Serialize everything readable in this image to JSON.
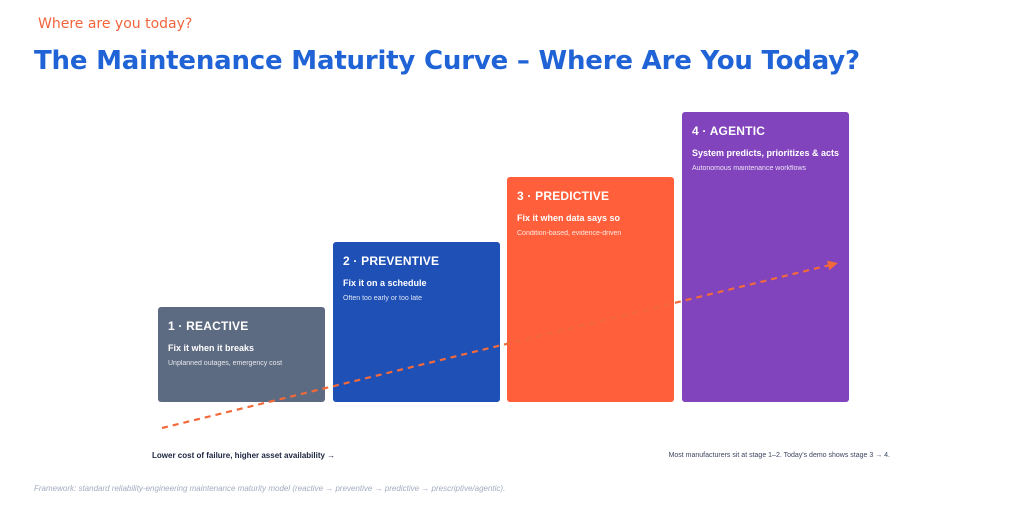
{
  "header": {
    "eyebrow": "Where are you today?",
    "title": "The Maintenance Maturity Curve – Where Are You Today?"
  },
  "stages": [
    {
      "title": "1 · REACTIVE",
      "headline": "Fix it when it breaks",
      "description": "Unplanned outages, emergency cost",
      "color": "#5d6b82"
    },
    {
      "title": "2 · PREVENTIVE",
      "headline": "Fix it on a schedule",
      "description": "Often too early or too late",
      "color": "#1f50b6"
    },
    {
      "title": "3 · PREDICTIVE",
      "headline": "Fix it when data says so",
      "description": "Condition-based, evidence-driven",
      "color": "#ff5f3a"
    },
    {
      "title": "4 · AGENTIC",
      "headline": "System predicts, prioritizes & acts",
      "description": "Autonomous maintenance workflows",
      "color": "#8244bd"
    }
  ],
  "colors": {
    "accent": "#f2643c",
    "title": "#1f63d6",
    "arrow": "#f26a3c"
  },
  "notes": {
    "axis": "Lower cost of failure, higher asset availability →",
    "side": "Most manufacturers sit at stage 1–2. Today's demo shows stage 3 → 4.",
    "footer": "Framework: standard reliability-engineering maintenance maturity model (reactive → preventive → predictive → prescriptive/agentic)."
  }
}
